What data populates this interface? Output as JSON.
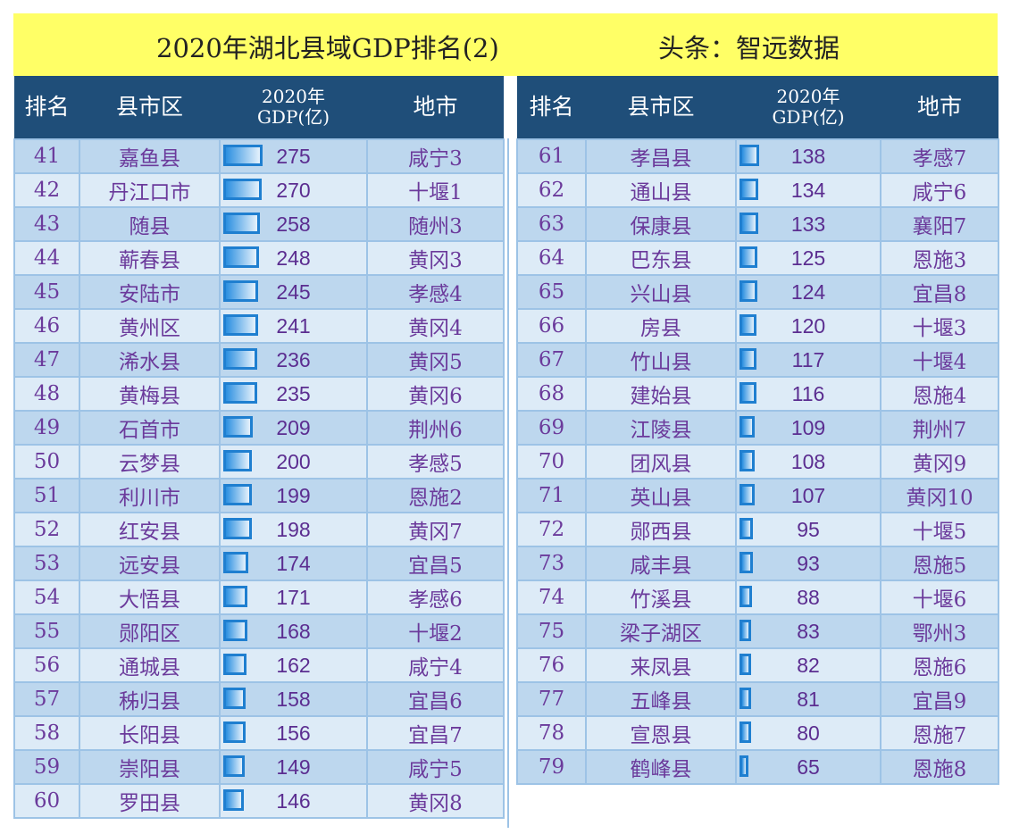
{
  "title": {
    "main": "2020年湖北县域GDP排名(2)",
    "source": "头条：智远数据"
  },
  "headers": {
    "rank": "排名",
    "county": "县市区",
    "gdp_line1": "2020年",
    "gdp_line2": "GDP(亿)",
    "city": "地市"
  },
  "colors": {
    "title_bg": "#FFFF66",
    "header_bg": "#1F4E79",
    "row_odd": "#BDD7EE",
    "row_even": "#DDEBF7",
    "text": "#6B3A9B",
    "bar": "#1F7FD0"
  },
  "max_gdp": 275,
  "left_rows": [
    [
      "41",
      "嘉鱼县",
      "275",
      "咸宁3"
    ],
    [
      "42",
      "丹江口市",
      "270",
      "十堰1"
    ],
    [
      "43",
      "随县",
      "258",
      "随州3"
    ],
    [
      "44",
      "蕲春县",
      "248",
      "黄冈3"
    ],
    [
      "45",
      "安陆市",
      "245",
      "孝感4"
    ],
    [
      "46",
      "黄州区",
      "241",
      "黄冈4"
    ],
    [
      "47",
      "浠水县",
      "236",
      "黄冈5"
    ],
    [
      "48",
      "黄梅县",
      "235",
      "黄冈6"
    ],
    [
      "49",
      "石首市",
      "209",
      "荆州6"
    ],
    [
      "50",
      "云梦县",
      "200",
      "孝感5"
    ],
    [
      "51",
      "利川市",
      "199",
      "恩施2"
    ],
    [
      "52",
      "红安县",
      "198",
      "黄冈7"
    ],
    [
      "53",
      "远安县",
      "174",
      "宜昌5"
    ],
    [
      "54",
      "大悟县",
      "171",
      "孝感6"
    ],
    [
      "55",
      "郧阳区",
      "168",
      "十堰2"
    ],
    [
      "56",
      "通城县",
      "162",
      "咸宁4"
    ],
    [
      "57",
      "秭归县",
      "158",
      "宜昌6"
    ],
    [
      "58",
      "长阳县",
      "156",
      "宜昌7"
    ],
    [
      "59",
      "崇阳县",
      "149",
      "咸宁5"
    ],
    [
      "60",
      "罗田县",
      "146",
      "黄冈8"
    ]
  ],
  "right_rows": [
    [
      "61",
      "孝昌县",
      "138",
      "孝感7"
    ],
    [
      "62",
      "通山县",
      "134",
      "咸宁6"
    ],
    [
      "63",
      "保康县",
      "133",
      "襄阳7"
    ],
    [
      "64",
      "巴东县",
      "125",
      "恩施3"
    ],
    [
      "65",
      "兴山县",
      "124",
      "宜昌8"
    ],
    [
      "66",
      "房县",
      "120",
      "十堰3"
    ],
    [
      "67",
      "竹山县",
      "117",
      "十堰4"
    ],
    [
      "68",
      "建始县",
      "116",
      "恩施4"
    ],
    [
      "69",
      "江陵县",
      "109",
      "荆州7"
    ],
    [
      "70",
      "团风县",
      "108",
      "黄冈9"
    ],
    [
      "71",
      "英山县",
      "107",
      "黄冈10"
    ],
    [
      "72",
      "郧西县",
      "95",
      "十堰5"
    ],
    [
      "73",
      "咸丰县",
      "93",
      "恩施5"
    ],
    [
      "74",
      "竹溪县",
      "88",
      "十堰6"
    ],
    [
      "75",
      "梁子湖区",
      "83",
      "鄂州3"
    ],
    [
      "76",
      "来凤县",
      "82",
      "恩施6"
    ],
    [
      "77",
      "五峰县",
      "81",
      "宜昌9"
    ],
    [
      "78",
      "宣恩县",
      "80",
      "恩施7"
    ],
    [
      "79",
      "鹤峰县",
      "65",
      "恩施8"
    ]
  ]
}
